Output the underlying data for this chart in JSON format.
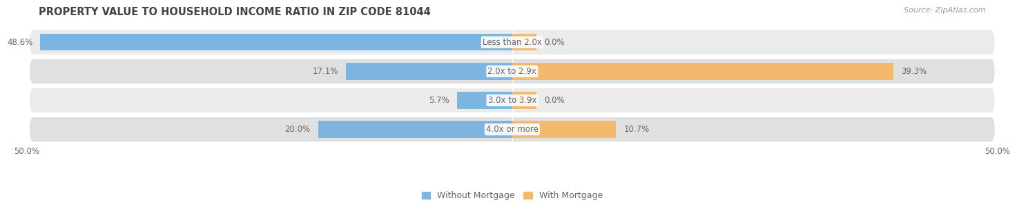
{
  "title": "PROPERTY VALUE TO HOUSEHOLD INCOME RATIO IN ZIP CODE 81044",
  "source": "Source: ZipAtlas.com",
  "categories": [
    "Less than 2.0x",
    "2.0x to 2.9x",
    "3.0x to 3.9x",
    "4.0x or more"
  ],
  "without_mortgage": [
    48.6,
    17.1,
    5.7,
    20.0
  ],
  "with_mortgage": [
    0.0,
    39.3,
    0.0,
    10.7
  ],
  "color_without": "#7cb5e0",
  "color_with": "#f5b96e",
  "row_bg_light": "#ebebeb",
  "row_bg_dark": "#e0e0e0",
  "xlim_left": -50,
  "xlim_right": 50,
  "bar_height": 0.58,
  "title_fontsize": 10.5,
  "label_fontsize": 8.5,
  "value_fontsize": 8.5,
  "legend_fontsize": 9,
  "source_fontsize": 8,
  "bg_color": "#ffffff",
  "text_color": "#666666",
  "title_color": "#444444"
}
